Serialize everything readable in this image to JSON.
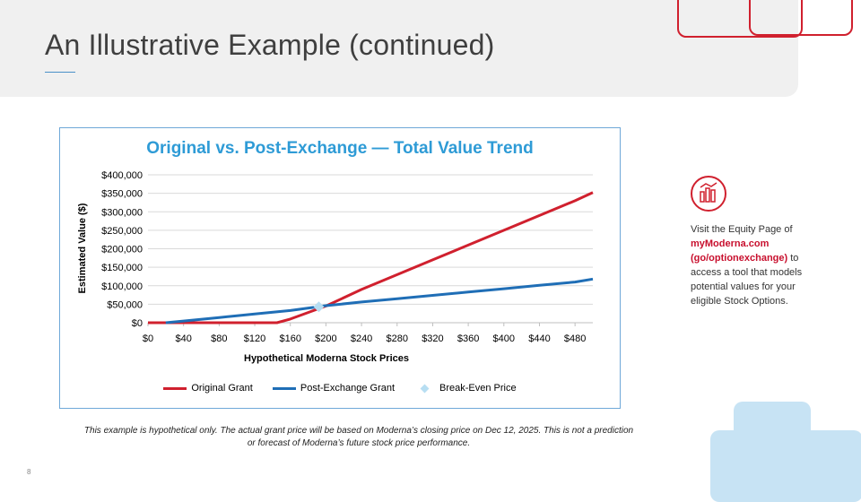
{
  "slide": {
    "title": "An Illustrative Example (continued)",
    "page_number": "8",
    "disclaimer_line1": "This example is hypothetical only.  The actual grant price will be based on Moderna’s closing price on Dec 12, 2025.  This is not a prediction",
    "disclaimer_line2": "or forecast of Moderna’s future stock price performance."
  },
  "sidebar": {
    "line1": "Visit the Equity Page of",
    "link1": "myModerna.com",
    "link2": "(go/optionexchange)",
    "line2_suffix": " to",
    "line3": "access a tool that models potential values for your eligible Stock Options.",
    "icon": "chart-bars-icon"
  },
  "colors": {
    "original": "#d0202e",
    "post_exchange": "#1f6eb6",
    "break_even": "#b7def2",
    "accent": "#2e9bd6"
  },
  "chart_data": {
    "type": "line",
    "title": "Original vs. Post-Exchange — Total Value Trend",
    "xlabel": "Hypothetical Moderna Stock Prices",
    "ylabel": "Estimated Value ($)",
    "xlim": [
      0,
      500
    ],
    "ylim": [
      0,
      400000
    ],
    "x_ticks": [
      0,
      40,
      80,
      120,
      160,
      200,
      240,
      280,
      320,
      360,
      400,
      440,
      480
    ],
    "x_tick_labels": [
      "$0",
      "$40",
      "$80",
      "$120",
      "$160",
      "$200",
      "$240",
      "$280",
      "$320",
      "$360",
      "$400",
      "$440",
      "$480"
    ],
    "y_ticks": [
      0,
      50000,
      100000,
      150000,
      200000,
      250000,
      300000,
      350000,
      400000
    ],
    "y_tick_labels": [
      "$0",
      "$50,000",
      "$100,000",
      "$150,000",
      "$200,000",
      "$250,000",
      "$300,000",
      "$350,000",
      "$400,000"
    ],
    "series": [
      {
        "name": "Original Grant",
        "x": [
          0,
          40,
          80,
          120,
          145,
          160,
          200,
          240,
          280,
          320,
          360,
          400,
          440,
          480,
          500
        ],
        "y": [
          0,
          0,
          0,
          0,
          0,
          10000,
          45000,
          90000,
          130000,
          170000,
          210000,
          250000,
          290000,
          330000,
          352000
        ]
      },
      {
        "name": "Post-Exchange Grant",
        "x": [
          20,
          40,
          80,
          120,
          160,
          200,
          240,
          280,
          320,
          360,
          400,
          440,
          480,
          500
        ],
        "y": [
          0,
          4500,
          14000,
          23500,
          33000,
          46000,
          56000,
          65000,
          74000,
          83000,
          92000,
          101000,
          110000,
          118000
        ]
      }
    ],
    "break_even": {
      "name": "Break-Even Price",
      "x": 192,
      "y": 43000
    },
    "grid": true,
    "legend_position": "bottom"
  }
}
